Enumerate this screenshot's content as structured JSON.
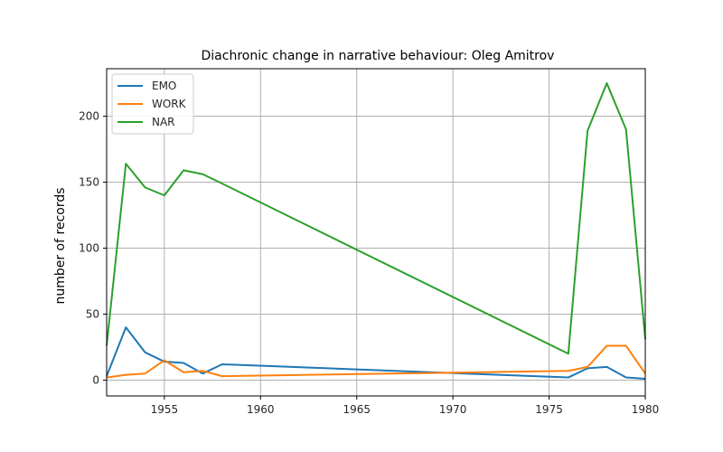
{
  "chart_data": {
    "type": "line",
    "title": "Diachronic change in narrative behaviour: Oleg Amitrov",
    "xlabel": "",
    "ylabel": "number of records",
    "xlim": [
      1952,
      1980
    ],
    "ylim": [
      -12,
      236
    ],
    "xticks": [
      1955,
      1960,
      1965,
      1970,
      1975,
      1980
    ],
    "yticks": [
      0,
      50,
      100,
      150,
      200
    ],
    "grid": true,
    "legend": "upper-left",
    "series": [
      {
        "name": "EMO",
        "color": "#1f77b4",
        "points": [
          [
            1952,
            3
          ],
          [
            1953,
            40
          ],
          [
            1954,
            21
          ],
          [
            1955,
            14
          ],
          [
            1956,
            13
          ],
          [
            1957,
            5
          ],
          [
            1958,
            12
          ],
          [
            1976,
            2
          ],
          [
            1977,
            9
          ],
          [
            1978,
            10
          ],
          [
            1979,
            2
          ],
          [
            1980,
            1
          ]
        ]
      },
      {
        "name": "WORK",
        "color": "#ff7f0e",
        "points": [
          [
            1952,
            2
          ],
          [
            1953,
            4
          ],
          [
            1954,
            5
          ],
          [
            1955,
            15
          ],
          [
            1956,
            6
          ],
          [
            1957,
            7
          ],
          [
            1958,
            3
          ],
          [
            1976,
            7
          ],
          [
            1977,
            10
          ],
          [
            1978,
            26
          ],
          [
            1979,
            26
          ],
          [
            1980,
            5
          ]
        ]
      },
      {
        "name": "NAR",
        "color": "#2ca02c",
        "points": [
          [
            1952,
            26
          ],
          [
            1953,
            164
          ],
          [
            1954,
            146
          ],
          [
            1955,
            140
          ],
          [
            1956,
            159
          ],
          [
            1957,
            156
          ],
          [
            1958,
            149
          ],
          [
            1976,
            20
          ],
          [
            1977,
            189
          ],
          [
            1978,
            225
          ],
          [
            1979,
            190
          ],
          [
            1980,
            31
          ]
        ]
      }
    ]
  }
}
